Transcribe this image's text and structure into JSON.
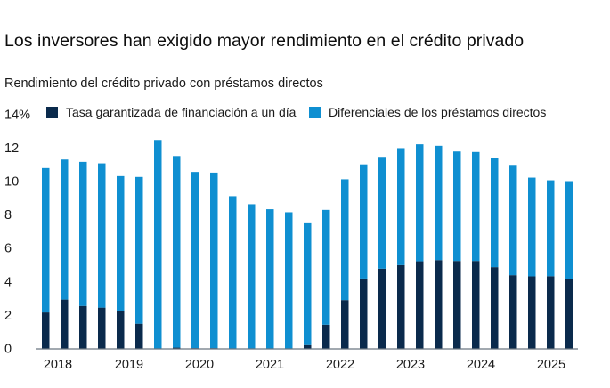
{
  "title": "Los inversores han exigido mayor rendimiento en el crédito privado",
  "subtitle": "Rendimiento del crédito privado con préstamos directos",
  "colors": {
    "series_dark": "#0a2a4c",
    "series_light": "#0f8fd1",
    "axis": "#6b7680",
    "text": "#1a1a1a"
  },
  "chart_data": {
    "type": "bar",
    "stacked": true,
    "title": "Los inversores han exigido mayor rendimiento en el crédito privado",
    "subtitle": "Rendimiento del crédito privado con préstamos directos",
    "xlabel": "",
    "ylabel": "%",
    "ylim": [
      0,
      14
    ],
    "yticks": [
      0,
      2,
      4,
      6,
      8,
      10,
      12,
      14
    ],
    "ytick_labels": [
      "0",
      "2",
      "4",
      "6",
      "8",
      "10",
      "12",
      "14%"
    ],
    "xtick_labels": [
      "2018",
      "2019",
      "2020",
      "2021",
      "2022",
      "2023",
      "2024",
      "2025"
    ],
    "grid": false,
    "legend_position": "top",
    "categories": [
      "2018 T1",
      "2018 T2",
      "2018 T3",
      "2018 T4",
      "2019 T1",
      "2019 T2",
      "2019 T3",
      "2019 T4",
      "2020 T1",
      "2020 T2",
      "2020 T3",
      "2020 T4",
      "2021 T1",
      "2021 T2",
      "2021 T3",
      "2021 T4",
      "2022 T1",
      "2022 T2",
      "2022 T3",
      "2022 T4",
      "2023 T1",
      "2023 T2",
      "2023 T3",
      "2023 T4",
      "2024 T1",
      "2024 T2",
      "2024 T3",
      "2024 T4",
      "2025 T1"
    ],
    "series": [
      {
        "name": "Tasa garantizada de financiación a un día",
        "color": "#0a2a4c",
        "values": [
          2.15,
          2.92,
          2.54,
          2.44,
          2.26,
          1.48,
          0.0,
          0.05,
          0.02,
          0.02,
          0.0,
          0.0,
          0.0,
          0.0,
          0.2,
          1.42,
          2.89,
          4.18,
          4.77,
          4.98,
          5.21,
          5.28,
          5.23,
          5.23,
          4.86,
          4.38,
          4.31,
          4.32,
          4.13
        ]
      },
      {
        "name": "Diferenciales de los préstamos directos",
        "color": "#0f8fd1",
        "values": [
          8.63,
          8.37,
          8.61,
          8.62,
          8.04,
          8.77,
          12.46,
          11.45,
          10.53,
          10.49,
          9.1,
          8.62,
          8.32,
          8.14,
          7.28,
          6.86,
          7.22,
          6.82,
          6.68,
          6.99,
          6.99,
          6.83,
          6.54,
          6.51,
          6.54,
          6.59,
          5.9,
          5.73,
          5.87
        ]
      }
    ],
    "totals": [
      10.78,
      11.29,
      11.15,
      11.06,
      10.3,
      10.25,
      12.46,
      11.5,
      10.55,
      10.51,
      9.1,
      8.62,
      8.32,
      8.14,
      7.48,
      8.28,
      10.11,
      11.0,
      11.45,
      11.97,
      12.2,
      12.11,
      11.77,
      11.74,
      11.4,
      10.97,
      10.21,
      10.05,
      10.0
    ]
  }
}
